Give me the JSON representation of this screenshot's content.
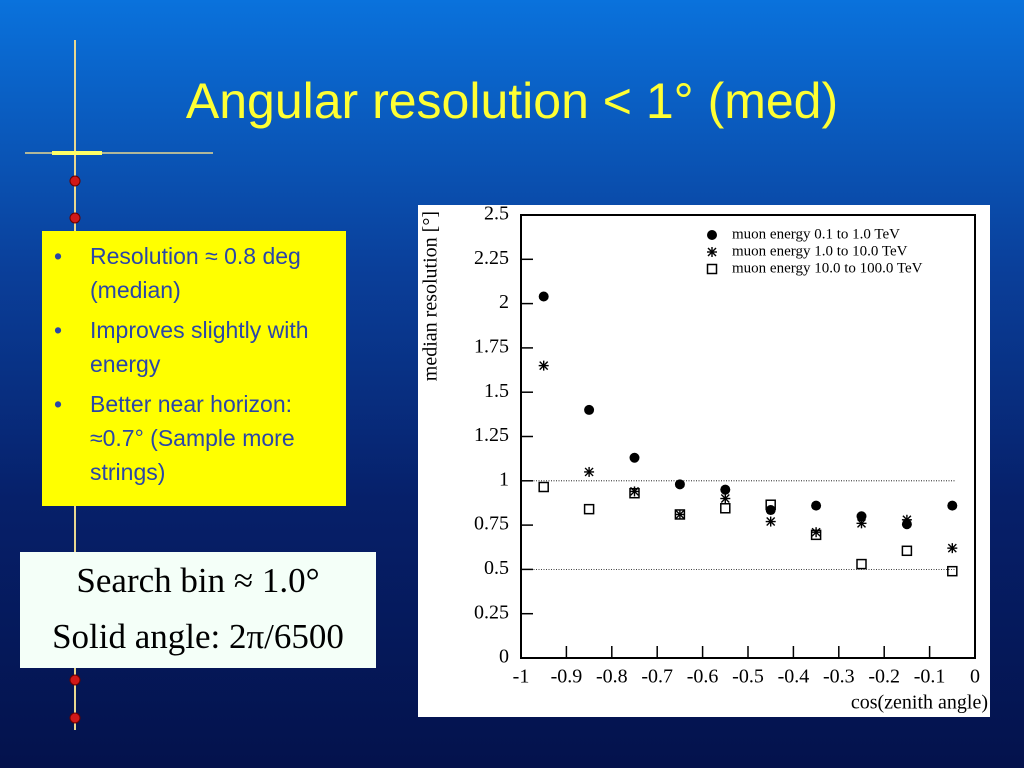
{
  "slide": {
    "title": "Angular resolution < 1° (med)",
    "bullets": [
      "Resolution ≈ 0.8 deg (median)",
      "Improves slightly with energy",
      "Better near horizon: ≈0.7° (Sample more strings)"
    ],
    "box_lines": [
      "Search bin ≈ 1.0°",
      "Solid angle: 2π/6500"
    ]
  },
  "chart_data": {
    "type": "scatter",
    "x_label": "cos(zenith angle)",
    "y_label": "median resolution [°]",
    "xlim": [
      -1,
      0
    ],
    "xticks": [
      -1,
      -0.9,
      -0.8,
      -0.7,
      -0.6,
      -0.5,
      -0.4,
      -0.3,
      -0.2,
      -0.1,
      0
    ],
    "ylim": [
      0,
      2.5
    ],
    "yticks": [
      0,
      0.25,
      0.5,
      0.75,
      1,
      1.25,
      1.5,
      1.75,
      2,
      2.25,
      2.5
    ],
    "reference_lines": [
      1,
      0.5
    ],
    "grid": false,
    "legend": "top-right",
    "x": [
      -0.95,
      -0.85,
      -0.75,
      -0.65,
      -0.55,
      -0.45,
      -0.35,
      -0.25,
      -0.15,
      -0.05
    ],
    "series": [
      {
        "name": "muon energy 0.1 to 1.0 TeV",
        "marker": "circle",
        "color": "#000000",
        "values": [
          2.04,
          1.4,
          1.13,
          0.98,
          0.95,
          0.835,
          0.86,
          0.8,
          0.755,
          0.86
        ]
      },
      {
        "name": "muon energy 1.0 to 10.0 TeV",
        "marker": "star",
        "color": "#000000",
        "values": [
          1.65,
          1.05,
          0.94,
          0.81,
          0.9,
          0.77,
          0.71,
          0.76,
          0.78,
          0.62
        ]
      },
      {
        "name": "muon energy 10.0 to 100.0 TeV",
        "marker": "square",
        "color": "#000000",
        "values": [
          0.965,
          0.84,
          0.93,
          0.81,
          0.845,
          0.865,
          0.695,
          0.53,
          0.605,
          0.49
        ]
      }
    ]
  }
}
